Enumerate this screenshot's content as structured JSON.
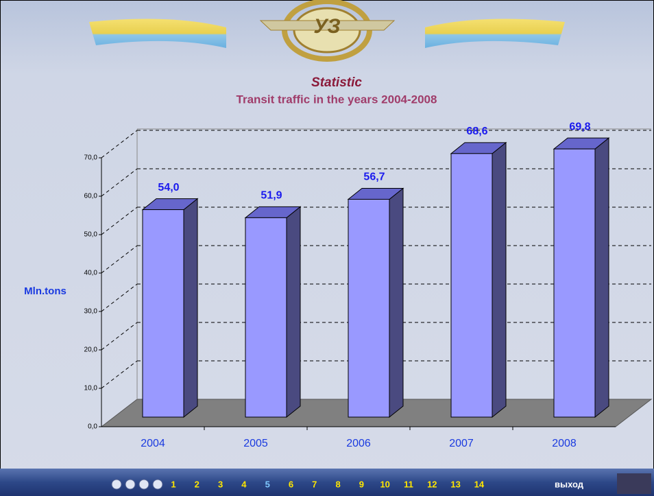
{
  "chart_data": {
    "type": "bar3d",
    "title": "Statistic",
    "subtitle": "Transit traffic in the years 2004-2008",
    "y_label": "Mln.tons",
    "categories": [
      "2004",
      "2005",
      "2006",
      "2007",
      "2008"
    ],
    "values": [
      54.0,
      51.9,
      56.7,
      68.6,
      69.8
    ],
    "value_labels": [
      "54,0",
      "51,9",
      "56,7",
      "68,6",
      "69,8"
    ],
    "color": "#9999ff",
    "ylim": [
      0,
      70
    ],
    "yticks": [
      {
        "value": 0,
        "label": "0,0"
      },
      {
        "value": 10,
        "label": "10,0"
      },
      {
        "value": 20,
        "label": "20,0"
      },
      {
        "value": 30,
        "label": "30,0"
      },
      {
        "value": 40,
        "label": "40,0"
      },
      {
        "value": 50,
        "label": "50,0"
      },
      {
        "value": 60,
        "label": "60,0"
      },
      {
        "value": 70,
        "label": "70,0"
      }
    ],
    "grid": true
  },
  "navigation": {
    "pages": [
      "1",
      "2",
      "3",
      "4",
      "5",
      "6",
      "7",
      "8",
      "9",
      "10",
      "11",
      "12",
      "13",
      "14"
    ],
    "current": 4,
    "exit": "выход"
  }
}
